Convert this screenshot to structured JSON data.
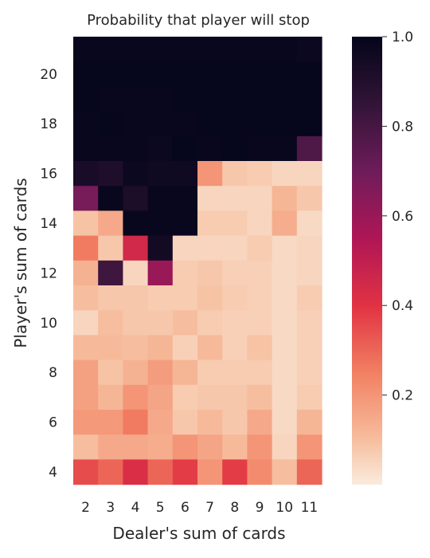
{
  "chart_data": {
    "type": "heatmap",
    "title": "Probability that player will stop",
    "xlabel": "Dealer's sum of cards",
    "ylabel": "Player's sum of cards",
    "x": [
      2,
      3,
      4,
      5,
      6,
      7,
      8,
      9,
      10,
      11
    ],
    "y": [
      21,
      20,
      19,
      18,
      17,
      16,
      15,
      14,
      13,
      12,
      11,
      10,
      9,
      8,
      7,
      6,
      5,
      4
    ],
    "y_tick_labels": [
      "20",
      "18",
      "16",
      "14",
      "12",
      "10",
      "8",
      "6",
      "4"
    ],
    "values": [
      [
        0.98,
        0.98,
        0.98,
        0.98,
        0.98,
        0.98,
        0.98,
        0.98,
        0.98,
        0.97
      ],
      [
        0.99,
        0.99,
        0.99,
        0.99,
        0.99,
        0.99,
        0.99,
        0.99,
        0.99,
        0.99
      ],
      [
        0.99,
        0.98,
        0.98,
        0.98,
        0.99,
        0.99,
        0.99,
        0.99,
        0.99,
        0.99
      ],
      [
        0.98,
        0.99,
        0.98,
        0.98,
        0.98,
        0.99,
        0.99,
        0.99,
        0.99,
        0.99
      ],
      [
        0.98,
        0.98,
        0.98,
        0.97,
        0.99,
        0.98,
        0.99,
        0.98,
        0.98,
        0.78
      ],
      [
        0.93,
        0.91,
        0.97,
        0.96,
        0.96,
        0.2,
        0.08,
        0.07,
        0.05,
        0.05
      ],
      [
        0.68,
        0.98,
        0.92,
        0.98,
        0.98,
        0.05,
        0.05,
        0.05,
        0.12,
        0.08
      ],
      [
        0.09,
        0.15,
        0.98,
        0.98,
        0.98,
        0.07,
        0.07,
        0.05,
        0.14,
        0.04
      ],
      [
        0.26,
        0.08,
        0.45,
        0.95,
        0.05,
        0.05,
        0.05,
        0.07,
        0.04,
        0.05
      ],
      [
        0.13,
        0.82,
        0.05,
        0.6,
        0.07,
        0.08,
        0.06,
        0.06,
        0.04,
        0.05
      ],
      [
        0.1,
        0.08,
        0.08,
        0.07,
        0.07,
        0.09,
        0.07,
        0.06,
        0.04,
        0.07
      ],
      [
        0.05,
        0.1,
        0.08,
        0.08,
        0.1,
        0.07,
        0.06,
        0.06,
        0.04,
        0.06
      ],
      [
        0.11,
        0.11,
        0.1,
        0.12,
        0.06,
        0.11,
        0.06,
        0.09,
        0.04,
        0.06
      ],
      [
        0.17,
        0.09,
        0.13,
        0.18,
        0.12,
        0.07,
        0.07,
        0.07,
        0.04,
        0.06
      ],
      [
        0.17,
        0.12,
        0.2,
        0.16,
        0.07,
        0.08,
        0.08,
        0.1,
        0.04,
        0.07
      ],
      [
        0.19,
        0.19,
        0.26,
        0.15,
        0.08,
        0.11,
        0.08,
        0.15,
        0.04,
        0.12
      ],
      [
        0.1,
        0.15,
        0.15,
        0.14,
        0.2,
        0.16,
        0.11,
        0.2,
        0.05,
        0.2
      ],
      [
        0.35,
        0.3,
        0.42,
        0.3,
        0.38,
        0.2,
        0.38,
        0.22,
        0.1,
        0.3
      ]
    ],
    "colorbar": {
      "range": [
        0,
        1.0
      ],
      "tick_values": [
        0.2,
        0.4,
        0.6,
        0.8,
        1.0
      ],
      "tick_labels": [
        "0.2",
        "0.4",
        "0.6",
        "0.8",
        "1.0"
      ],
      "colormap": "rocket_r"
    },
    "grid": false,
    "legend": "colorbar-right"
  }
}
